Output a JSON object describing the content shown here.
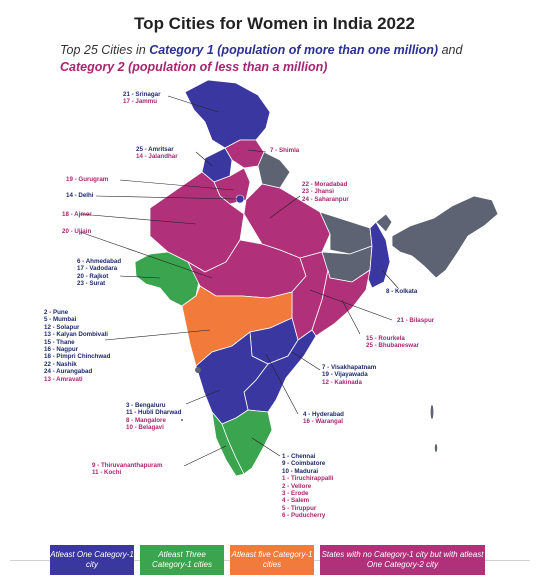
{
  "title": "Top Cities for Women in India 2022",
  "subtitle": {
    "p1": "Top 25 Cities in ",
    "cat1": "Category 1 (population of more than one million)",
    "p2": " and ",
    "cat2": "Category 2 (population of less than a million)"
  },
  "colors": {
    "blue": "#3a37a0",
    "green": "#3aa44f",
    "orange": "#f27a3a",
    "magenta": "#b0307a",
    "grey": "#5e6374",
    "navy_text": "#1f2a6b",
    "magenta_text": "#a8266f"
  },
  "labels": {
    "srinagar": [
      "21 - Srinagar",
      "17 - Jammu"
    ],
    "amritsar": [
      "25 - Amritsar",
      "14 - Jalandhar"
    ],
    "shimla": [
      "7 - Shimla"
    ],
    "gurugram": [
      "19 - Gurugram"
    ],
    "delhi": [
      "14 - Delhi"
    ],
    "moradabad": [
      "22 - Moradabad",
      "23 - Jhansi",
      "24 - Saharanpur"
    ],
    "ajmer": [
      "18 - Ajmer"
    ],
    "ujjain": [
      "20 - Ujjain"
    ],
    "gujarat": [
      "6 - Ahmedabad",
      "17 - Vadodara",
      "20 - Rajkot",
      "23 - Surat"
    ],
    "kolkata": [
      "8 - Kolkata"
    ],
    "maharashtra": [
      "2 - Pune",
      "5 - Mumbai",
      "12 - Solapur",
      "13 - Kalyan Dombivali",
      "15 - Thane",
      "16 - Nagpur",
      "18 - Pimpri Chinchwad",
      "22 - Nashik",
      "24 - Aurangabad",
      "13 - Amravati"
    ],
    "bilaspur": [
      "21 - Bilaspur"
    ],
    "rourkela": [
      "15 - Rourkela",
      "25 - Bhubaneswar"
    ],
    "vizag": [
      "7 - Visakhapatnam",
      "19 - Vijayawada",
      "12 - Kakinada"
    ],
    "karnataka": [
      "3 - Bengaluru",
      "11 - Hubli Dharwad",
      "8 - Mangalore",
      "10 - Belagavi"
    ],
    "hyderabad": [
      "4 - Hyderabad",
      "16 - Warangal"
    ],
    "kerala": [
      "9 - Thiruvananthapuram",
      "11 - Kochi"
    ],
    "tamilnadu": [
      "1 - Chennai",
      "9 - Coimbatore",
      "10 - Madurai",
      "1 - Tiruchirappalli",
      "2 - Vellore",
      "3 - Erode",
      "4 - Salem",
      "5 - Tiruppur",
      "6 - Puducherry"
    ]
  },
  "legend": [
    {
      "text": "Atleast One Category-1 city",
      "color": "#3a37a0"
    },
    {
      "text": "Atleast Three Category-1 cities",
      "color": "#3aa44f"
    },
    {
      "text": "Atleast five Category-1 cities",
      "color": "#f27a3a"
    },
    {
      "text": "States with no Category-1 city but with atleast One Category-2 city",
      "color": "#b0307a"
    }
  ]
}
